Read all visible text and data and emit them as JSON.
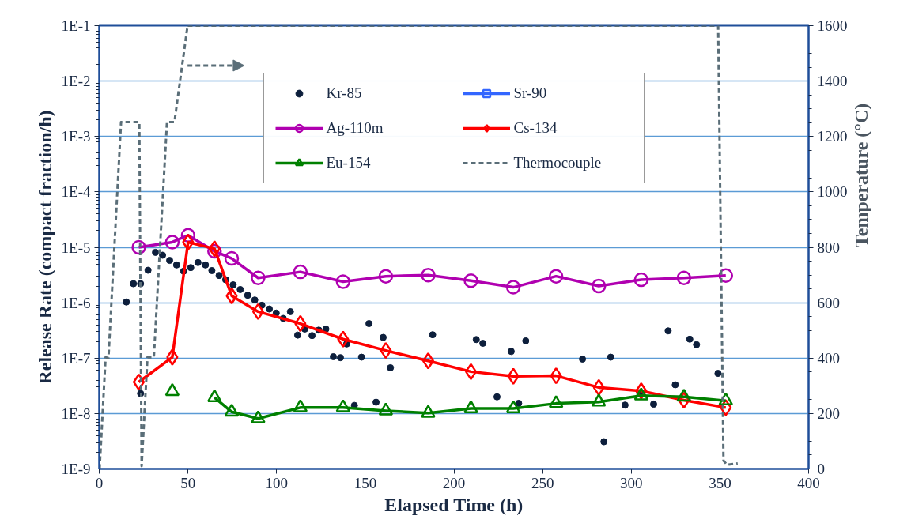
{
  "chart_data": {
    "type": "line",
    "xlabel": "Elapsed Time (h)",
    "ylabel": "Release Rate (compact fraction/h)",
    "y2label": "Temperature (°C)",
    "xlim": [
      0,
      400
    ],
    "xticks": [
      0,
      50,
      100,
      150,
      200,
      250,
      300,
      350,
      400
    ],
    "ylim": [
      1e-09,
      0.1
    ],
    "yticks": [
      {
        "value": 1e-09,
        "label": "1E-9"
      },
      {
        "value": 1e-08,
        "label": "1E-8"
      },
      {
        "value": 1e-07,
        "label": "1E-7"
      },
      {
        "value": 1e-06,
        "label": "1E-6"
      },
      {
        "value": 1e-05,
        "label": "1E-5"
      },
      {
        "value": 0.0001,
        "label": "1E-4"
      },
      {
        "value": 0.001,
        "label": "1E-3"
      },
      {
        "value": 0.01,
        "label": "1E-2"
      },
      {
        "value": 0.1,
        "label": "1E-1"
      }
    ],
    "y2lim": [
      0,
      1600
    ],
    "y2ticks": [
      0,
      200,
      400,
      600,
      800,
      1000,
      1200,
      1400,
      1600
    ],
    "log": "y",
    "grid": "y",
    "legend": "top",
    "series": [
      {
        "name": "Kr-85",
        "type": "scatter",
        "marker": "circle",
        "color": "#0d1f3c",
        "x": [
          15.3,
          19.3,
          23.3,
          23.3,
          27.5,
          31.7,
          35.7,
          39.7,
          43.6,
          47.6,
          51.6,
          55.7,
          59.9,
          63.5,
          67.6,
          71.3,
          75.5,
          79.5,
          83.7,
          87.7,
          91.7,
          95.9,
          99.8,
          103.8,
          107.8,
          111.9,
          115.9,
          120.0,
          123.8,
          127.8,
          132.0,
          136.0,
          139.5,
          143.9,
          147.9,
          152.1,
          156.1,
          160.1,
          164.2,
          188.0,
          212.6,
          216.3,
          224.3,
          232.3,
          236.5,
          240.5,
          272.5,
          284.6,
          288.4,
          296.5,
          304.7,
          312.6,
          320.8,
          324.8,
          333.0,
          336.8,
          348.9
        ],
        "values": [
          1.03e-06,
          2.2e-06,
          2.2e-06,
          2.3e-08,
          3.85e-06,
          8.1e-06,
          7.2e-06,
          5.8e-06,
          4.8e-06,
          3.7e-06,
          4.3e-06,
          5.3e-06,
          4.8e-06,
          3.8e-06,
          3.1e-06,
          2.6e-06,
          2.1e-06,
          1.73e-06,
          1.36e-06,
          1.12e-06,
          9e-07,
          7.7e-07,
          6.5e-07,
          5.2e-07,
          6.9e-07,
          2.6e-07,
          3.35e-07,
          2.55e-07,
          3.2e-07,
          3.35e-07,
          1.06e-07,
          1.02e-07,
          1.8e-07,
          1.4e-08,
          1.04e-07,
          4.2e-07,
          1.6e-08,
          2.36e-07,
          6.7e-08,
          2.64e-07,
          2.16e-07,
          1.85e-07,
          2e-08,
          1.32e-07,
          1.53e-08,
          2.05e-07,
          9.6e-08,
          3.1e-09,
          1.04e-07,
          1.42e-08,
          2.37e-08,
          1.48e-08,
          3.1e-07,
          3.3e-08,
          2.2e-07,
          1.75e-07,
          5.3e-08
        ]
      },
      {
        "name": "Sr-90",
        "marker": "square",
        "color": "#3366ff"
      },
      {
        "name": "Ag-110m",
        "marker": "circle",
        "color": "#b000b0",
        "x": [
          22.3,
          41.2,
          50.1,
          65,
          74.7,
          89.6,
          113.4,
          137.5,
          161.6,
          185.5,
          209.6,
          233.5,
          257.6,
          281.7,
          305.6,
          329.7,
          353.3
        ],
        "values": [
          1e-05,
          1.24e-05,
          1.65e-05,
          8.5e-06,
          6.3e-06,
          2.8e-06,
          3.6e-06,
          2.4e-06,
          3e-06,
          3.15e-06,
          2.5e-06,
          1.9e-06,
          3e-06,
          2e-06,
          2.6e-06,
          2.8e-06,
          3.1e-06
        ]
      },
      {
        "name": "Cs-134",
        "marker": "diamond",
        "color": "#ff0000",
        "x": [
          22.3,
          41.2,
          50.1,
          65,
          74.7,
          89.6,
          113.4,
          137.5,
          161.6,
          185.5,
          209.6,
          233.5,
          257.6,
          281.7,
          305.6,
          329.7,
          353.3
        ],
        "values": [
          3.7e-08,
          1.04e-07,
          1.24e-05,
          9.4e-06,
          1.33e-06,
          6.9e-07,
          4.2e-07,
          2.2e-07,
          1.37e-07,
          8.9e-08,
          5.7e-08,
          4.7e-08,
          4.8e-08,
          2.95e-08,
          2.56e-08,
          1.74e-08,
          1.28e-08
        ]
      },
      {
        "name": "Eu-154",
        "marker": "triangle",
        "color": "#008000",
        "x": [
          41.2,
          50.1,
          65,
          74.7,
          89.6,
          113.4,
          137.5,
          161.6,
          185.5,
          209.6,
          233.5,
          257.6,
          281.7,
          305.6,
          329.7,
          353.3
        ],
        "values": [
          2.5e-08,
          null,
          1.94e-08,
          1.07e-08,
          8.1e-09,
          1.28e-08,
          1.28e-08,
          1.12e-08,
          1.02e-08,
          1.23e-08,
          1.23e-08,
          1.52e-08,
          1.62e-08,
          2.1e-08,
          2e-08,
          1.7e-08
        ]
      },
      {
        "name": "Thermocouple",
        "axis": "y2",
        "marker": "none",
        "line_style": "dashed",
        "color": "#5a6e78",
        "x": [
          0.2,
          3.6,
          5.2,
          12.3,
          22.6,
          23.9,
          27.2,
          30.8,
          38.2,
          42.4,
          49.8,
          349,
          352,
          354,
          360
        ],
        "values": [
          0,
          403,
          400,
          1252,
          1252,
          10,
          403,
          403,
          1252,
          1252,
          1600,
          1600,
          30,
          15,
          20
        ]
      }
    ]
  }
}
